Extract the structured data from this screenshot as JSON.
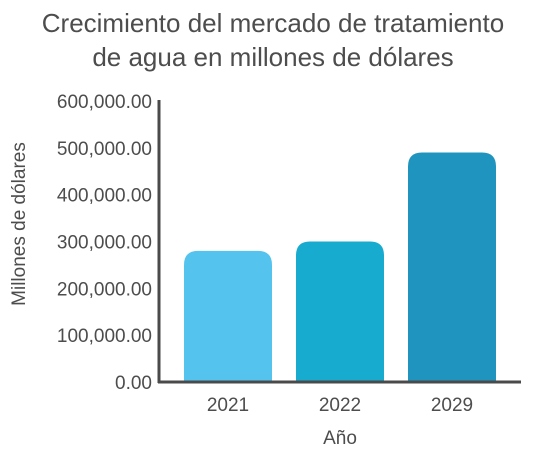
{
  "chart_data": {
    "type": "bar",
    "title_lines": [
      "Crecimiento del mercado de tratamiento",
      "de agua en millones de dólares"
    ],
    "xlabel": "Año",
    "ylabel": "Millones de dólares",
    "categories": [
      "2021",
      "2022",
      "2029"
    ],
    "values": [
      280000,
      300000,
      490000
    ],
    "ylim": [
      0,
      600000
    ],
    "yticks": [
      {
        "value": 0,
        "label": "0.00"
      },
      {
        "value": 100000,
        "label": "100,000.00"
      },
      {
        "value": 200000,
        "label": "200,000.00"
      },
      {
        "value": 300000,
        "label": "300,000.00"
      },
      {
        "value": 400000,
        "label": "400,000.00"
      },
      {
        "value": 500000,
        "label": "500,000.00"
      },
      {
        "value": 600000,
        "label": "600,000.00"
      }
    ],
    "bar_colors": [
      "#54c4ef",
      "#17abcf",
      "#1f94bf"
    ],
    "axis_color": "#4a4a4a",
    "grid": false,
    "legend": "none"
  }
}
